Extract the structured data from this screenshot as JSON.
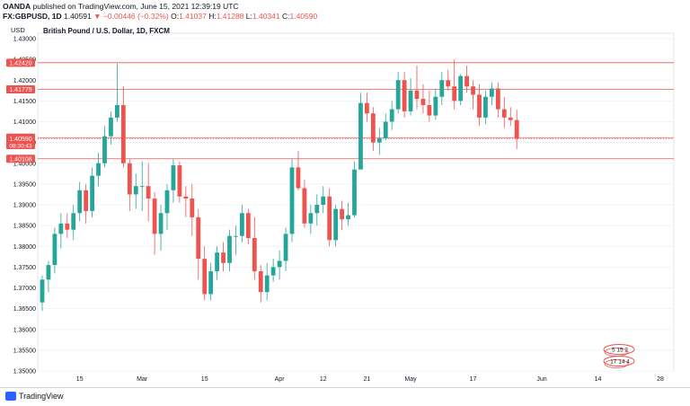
{
  "header": {
    "publisher": "OANDA",
    "publish_text": "published on TradingView.com, June 15, 2021 12:39:19 UTC",
    "symbol": "FX:GBPUSD, 1D",
    "last": "1.40591",
    "change": "−0.00446 (−0.32%)",
    "ohlc": {
      "o_label": "O:",
      "o": "1.41037",
      "h_label": "H:",
      "h": "1.41288",
      "l_label": "L:",
      "l": "1.40341",
      "c_label": "C:",
      "c": "1.40590"
    }
  },
  "footer": {
    "brand": "TradingView"
  },
  "chart_data": {
    "type": "candlestick",
    "title": "British Pound / U.S. Dollar, 1D, FXCM",
    "ylabel": "USD",
    "ylim": [
      1.35,
      1.43
    ],
    "yticks": [
      "1.43000",
      "1.42500",
      "1.42000",
      "1.41500",
      "1.41000",
      "1.40500",
      "1.40000",
      "1.39500",
      "1.39000",
      "1.38500",
      "1.38000",
      "1.37500",
      "1.37000",
      "1.36500",
      "1.36000",
      "1.35500",
      "1.35000"
    ],
    "xticks": [
      {
        "label": "15",
        "index": 6
      },
      {
        "label": "Mar",
        "index": 16
      },
      {
        "label": "15",
        "index": 26
      },
      {
        "label": "Apr",
        "index": 38
      },
      {
        "label": "12",
        "index": 45
      },
      {
        "label": "21",
        "index": 52
      },
      {
        "label": "May",
        "index": 59
      },
      {
        "label": "17",
        "index": 69
      },
      {
        "label": "Jun",
        "index": 80
      },
      {
        "label": "14",
        "index": 89
      },
      {
        "label": "28",
        "index": 99
      }
    ],
    "price_levels": [
      {
        "value": 1.4242,
        "label": "1.42420"
      },
      {
        "value": 1.41779,
        "label": "1.41779"
      },
      {
        "value": 1.40617,
        "label": "1.40617"
      },
      {
        "value": 1.4059,
        "label": "1.40590",
        "countdown": "08:30:43"
      },
      {
        "value": 1.40108,
        "label": "1.40108"
      }
    ],
    "candles": [
      [
        1.3665,
        1.373,
        1.3645,
        1.372
      ],
      [
        1.372,
        1.3765,
        1.369,
        1.3755
      ],
      [
        1.3755,
        1.3845,
        1.3735,
        1.383
      ],
      [
        1.383,
        1.388,
        1.3795,
        1.3855
      ],
      [
        1.3855,
        1.388,
        1.382,
        1.384
      ],
      [
        1.384,
        1.39,
        1.3815,
        1.388
      ],
      [
        1.388,
        1.3955,
        1.386,
        1.3935
      ],
      [
        1.3935,
        1.395,
        1.3855,
        1.3885
      ],
      [
        1.3885,
        1.399,
        1.387,
        1.397
      ],
      [
        1.397,
        1.4025,
        1.3945,
        1.4
      ],
      [
        1.4,
        1.409,
        1.399,
        1.4065
      ],
      [
        1.4065,
        1.4125,
        1.4045,
        1.411
      ],
      [
        1.411,
        1.424,
        1.41,
        1.414
      ],
      [
        1.414,
        1.4185,
        1.399,
        1.4
      ],
      [
        1.4,
        1.401,
        1.3885,
        1.3925
      ],
      [
        1.3925,
        1.3975,
        1.389,
        1.3945
      ],
      [
        1.3945,
        1.4005,
        1.3885,
        1.3945
      ],
      [
        1.3945,
        1.4,
        1.386,
        1.3915
      ],
      [
        1.3915,
        1.393,
        1.378,
        1.383
      ],
      [
        1.383,
        1.39,
        1.379,
        1.388
      ],
      [
        1.388,
        1.395,
        1.384,
        1.3935
      ],
      [
        1.3935,
        1.401,
        1.3905,
        1.3995
      ],
      [
        1.3995,
        1.4005,
        1.3905,
        1.392
      ],
      [
        1.392,
        1.3945,
        1.387,
        1.3915
      ],
      [
        1.3915,
        1.395,
        1.3825,
        1.387
      ],
      [
        1.387,
        1.389,
        1.372,
        1.377
      ],
      [
        1.377,
        1.38,
        1.367,
        1.3685
      ],
      [
        1.3685,
        1.376,
        1.367,
        1.374
      ],
      [
        1.374,
        1.38,
        1.372,
        1.3785
      ],
      [
        1.3785,
        1.381,
        1.374,
        1.376
      ],
      [
        1.376,
        1.384,
        1.374,
        1.3825
      ],
      [
        1.3825,
        1.385,
        1.378,
        1.3825
      ],
      [
        1.3825,
        1.39,
        1.381,
        1.388
      ],
      [
        1.388,
        1.389,
        1.3805,
        1.382
      ],
      [
        1.382,
        1.387,
        1.372,
        1.374
      ],
      [
        1.374,
        1.3755,
        1.3665,
        1.369
      ],
      [
        1.369,
        1.376,
        1.367,
        1.373
      ],
      [
        1.373,
        1.377,
        1.3715,
        1.375
      ],
      [
        1.375,
        1.379,
        1.372,
        1.3765
      ],
      [
        1.3765,
        1.3845,
        1.374,
        1.383
      ],
      [
        1.383,
        1.401,
        1.381,
        1.399
      ],
      [
        1.399,
        1.403,
        1.3935,
        1.394
      ],
      [
        1.394,
        1.396,
        1.3845,
        1.3855
      ],
      [
        1.3855,
        1.39,
        1.383,
        1.388
      ],
      [
        1.388,
        1.3925,
        1.385,
        1.39
      ],
      [
        1.39,
        1.3945,
        1.388,
        1.392
      ],
      [
        1.392,
        1.394,
        1.38,
        1.3815
      ],
      [
        1.3815,
        1.39,
        1.38,
        1.389
      ],
      [
        1.389,
        1.391,
        1.384,
        1.3865
      ],
      [
        1.3865,
        1.3905,
        1.385,
        1.3875
      ],
      [
        1.3875,
        1.4005,
        1.387,
        1.3985
      ],
      [
        1.3985,
        1.417,
        1.3985,
        1.4145
      ],
      [
        1.4145,
        1.417,
        1.41,
        1.412
      ],
      [
        1.412,
        1.4135,
        1.403,
        1.405
      ],
      [
        1.405,
        1.4085,
        1.402,
        1.406
      ],
      [
        1.406,
        1.412,
        1.4055,
        1.41
      ],
      [
        1.41,
        1.415,
        1.408,
        1.413
      ],
      [
        1.413,
        1.422,
        1.412,
        1.42
      ],
      [
        1.42,
        1.422,
        1.411,
        1.4125
      ],
      [
        1.4125,
        1.4205,
        1.4115,
        1.4175
      ],
      [
        1.4175,
        1.4235,
        1.413,
        1.4155
      ],
      [
        1.4155,
        1.419,
        1.412,
        1.414
      ],
      [
        1.414,
        1.4175,
        1.41,
        1.4115
      ],
      [
        1.4115,
        1.418,
        1.4105,
        1.416
      ],
      [
        1.416,
        1.422,
        1.414,
        1.42
      ],
      [
        1.42,
        1.4225,
        1.4175,
        1.4185
      ],
      [
        1.4185,
        1.425,
        1.413,
        1.415
      ],
      [
        1.415,
        1.4215,
        1.414,
        1.421
      ],
      [
        1.421,
        1.4235,
        1.417,
        1.4185
      ],
      [
        1.4185,
        1.42,
        1.413,
        1.4165
      ],
      [
        1.4165,
        1.419,
        1.409,
        1.411
      ],
      [
        1.411,
        1.4175,
        1.4095,
        1.416
      ],
      [
        1.416,
        1.4195,
        1.414,
        1.418
      ],
      [
        1.418,
        1.4195,
        1.411,
        1.413
      ],
      [
        1.413,
        1.416,
        1.4085,
        1.411
      ],
      [
        1.411,
        1.4135,
        1.409,
        1.4104
      ],
      [
        1.4104,
        1.4129,
        1.4034,
        1.4059
      ]
    ],
    "overlay_labels": [
      "5 15 2",
      "17 14 4"
    ]
  }
}
